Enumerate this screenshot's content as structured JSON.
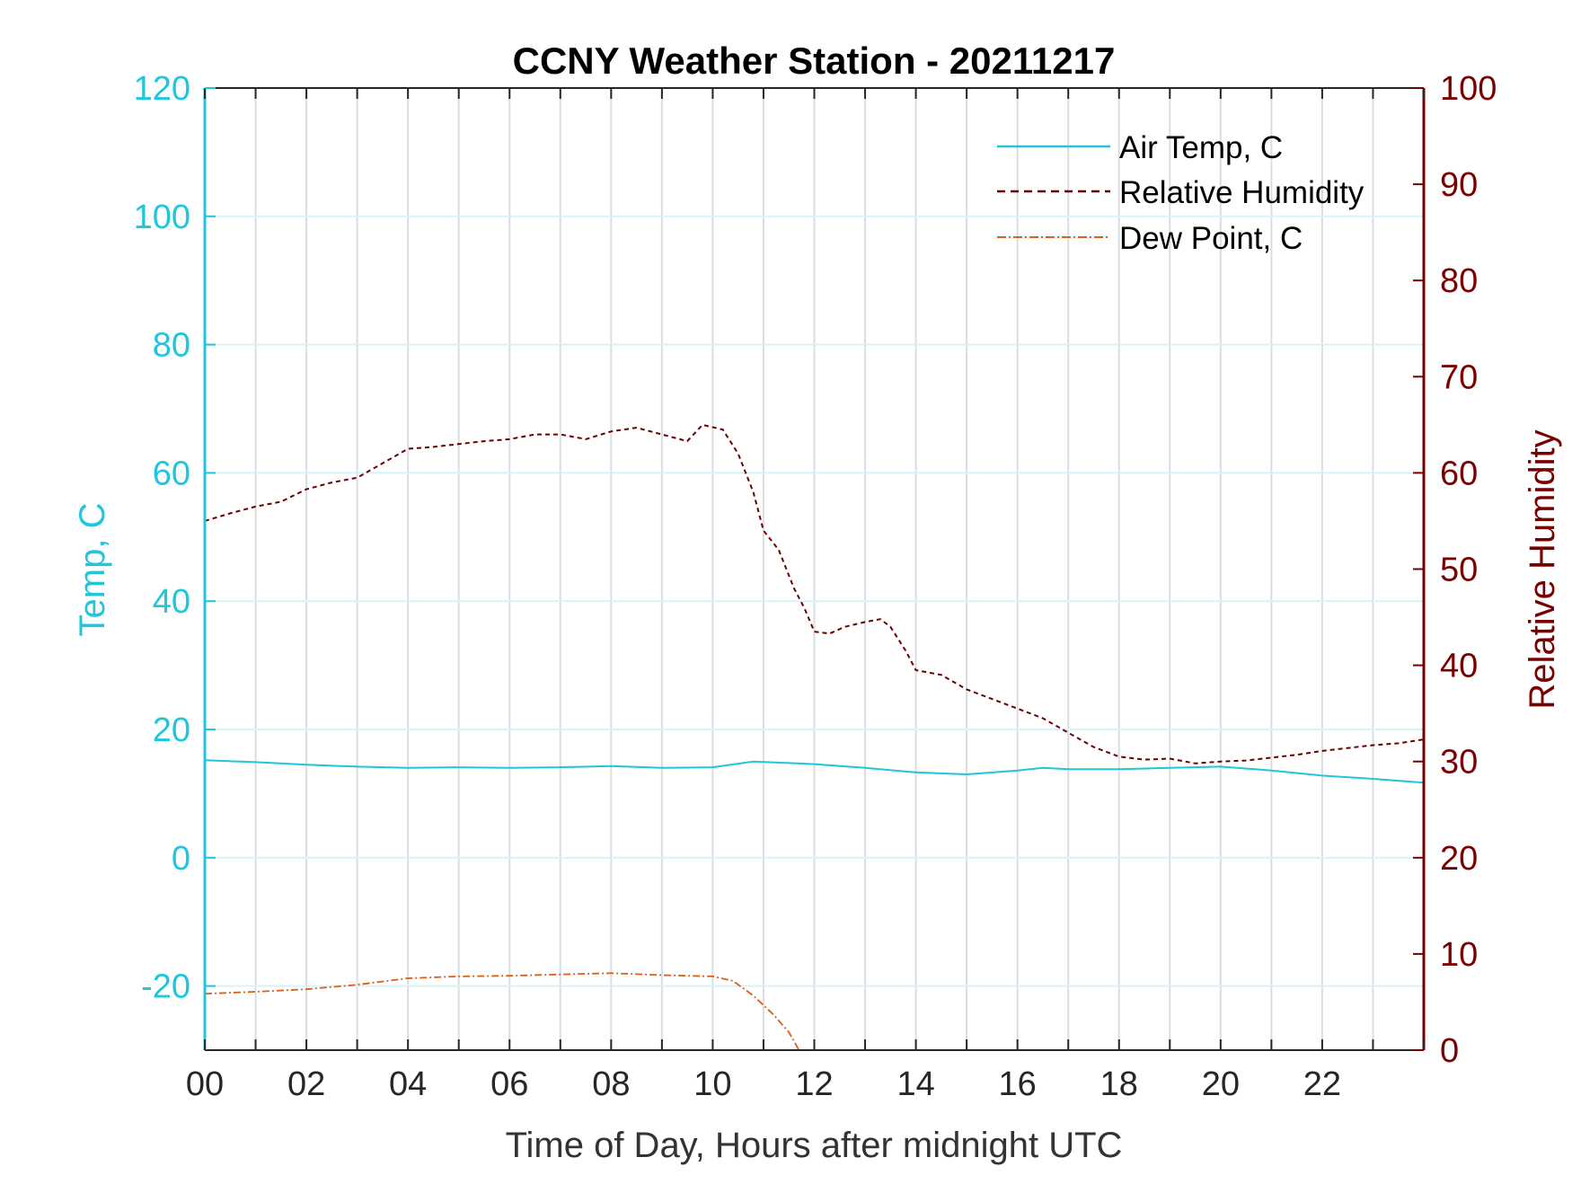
{
  "chart_data": {
    "type": "line",
    "title": "CCNY Weather Station - 20211217",
    "xlabel": "Time of Day, Hours after midnight UTC",
    "ylabel_left": "Temp, C",
    "ylabel_right": "Relative Humidity",
    "xlim": [
      0,
      24
    ],
    "ylim_left": [
      -30,
      120
    ],
    "ylim_right": [
      0,
      100
    ],
    "x_ticks": [
      "00",
      "02",
      "04",
      "06",
      "08",
      "10",
      "12",
      "14",
      "16",
      "18",
      "20",
      "22"
    ],
    "y_ticks_left": [
      "-20",
      "0",
      "20",
      "40",
      "60",
      "80",
      "100",
      "120"
    ],
    "y_ticks_right": [
      "0",
      "10",
      "20",
      "30",
      "40",
      "50",
      "60",
      "70",
      "80",
      "90",
      "100"
    ],
    "grid": true,
    "legend_position": "top-right",
    "colors": {
      "left_axis": "#1fc6dc",
      "right_axis": "#7a0000",
      "air_temp": "#1fc6dc",
      "humidity": "#6b0000",
      "dew_point": "#d95f1a",
      "grid_vertical": "#d9dee3",
      "grid_horizontal": "#d8f3f7"
    },
    "series": [
      {
        "name": "Air Temp, C",
        "axis": "left",
        "style": "solid",
        "x": [
          0,
          1,
          2,
          3,
          4,
          5,
          6,
          7,
          8,
          9,
          10,
          10.8,
          12,
          13,
          14,
          15,
          16,
          16.5,
          17,
          18,
          19,
          20,
          21,
          22,
          23,
          24
        ],
        "y": [
          15.2,
          14.9,
          14.5,
          14.2,
          14.0,
          14.1,
          14.0,
          14.1,
          14.3,
          14.0,
          14.1,
          15.0,
          14.6,
          14.0,
          13.3,
          13.0,
          13.6,
          14.0,
          13.8,
          13.8,
          14.0,
          14.2,
          13.6,
          12.8,
          12.3,
          11.7
        ]
      },
      {
        "name": "Relative Humidity",
        "axis": "right",
        "style": "dashed",
        "x": [
          0,
          0.5,
          1,
          1.5,
          2,
          2.5,
          3,
          3.5,
          4,
          4.5,
          5,
          5.5,
          6,
          6.5,
          7,
          7.5,
          8,
          8.5,
          9,
          9.5,
          9.8,
          10.2,
          10.5,
          10.8,
          11,
          11.3,
          11.6,
          11.8,
          12,
          12.3,
          12.6,
          13,
          13.3,
          13.5,
          13.8,
          14,
          14.5,
          15,
          15.5,
          16,
          16.5,
          17,
          17.5,
          18,
          18.5,
          19,
          19.5,
          20,
          20.5,
          21,
          21.5,
          22,
          22.5,
          23,
          23.5,
          24
        ],
        "y": [
          55,
          55.8,
          56.5,
          57,
          58.3,
          59,
          59.5,
          61,
          62.5,
          62.7,
          63,
          63.3,
          63.5,
          64,
          64,
          63.5,
          64.3,
          64.7,
          64,
          63.3,
          65,
          64.5,
          62,
          58,
          54,
          52,
          48,
          46,
          43.5,
          43.3,
          44,
          44.5,
          44.8,
          44,
          41.5,
          39.5,
          39,
          37.5,
          36.5,
          35.5,
          34.5,
          33,
          31.5,
          30.5,
          30.2,
          30.3,
          29.8,
          30,
          30.1,
          30.4,
          30.7,
          31.1,
          31.4,
          31.7,
          31.9,
          32.3
        ]
      },
      {
        "name": "Dew Point, C",
        "axis": "left",
        "style": "dashdot",
        "x": [
          0,
          1,
          2,
          3,
          4,
          5,
          6,
          7,
          8,
          9,
          10,
          10.4,
          10.8,
          11.2,
          11.5,
          11.7
        ],
        "y": [
          -21.2,
          -20.9,
          -20.5,
          -19.8,
          -18.8,
          -18.5,
          -18.4,
          -18.2,
          -18.0,
          -18.3,
          -18.5,
          -19.2,
          -21.5,
          -24.5,
          -27.2,
          -30
        ]
      }
    ]
  }
}
